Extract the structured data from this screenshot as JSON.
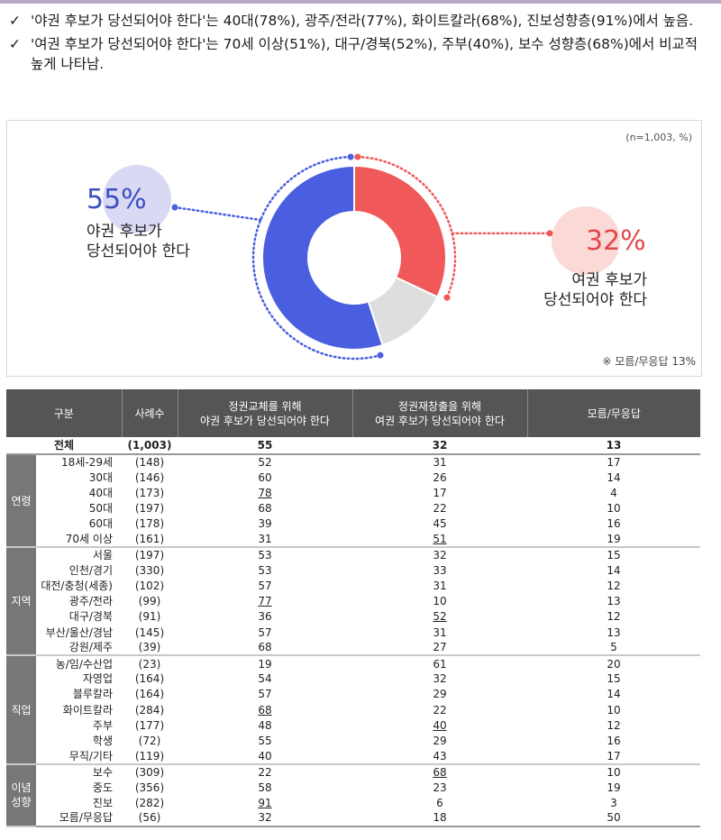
{
  "bullets": [
    {
      "check": "✓",
      "text": "'야권 후보가 당선되어야 한다'는 40대(78%), 광주/전라(77%), 화이트칼라(68%), 진보성향층(91%)에서 높음."
    },
    {
      "check": "✓",
      "text": "'여권 후보가 당선되어야 한다'는 70세 이상(51%), 대구/경북(52%), 주부(40%), 보수 성향층(68%)에서 비교적 높게 나타남."
    }
  ],
  "chart_data": {
    "type": "pie",
    "note": "(n=1,003, %)",
    "footnote": "※ 모름/무응답 13%",
    "slices": [
      {
        "name_lines": [
          "야권 후보가",
          "당선되어야 한다"
        ],
        "value": 55,
        "value_label": "55%",
        "color": "#4a5ee0",
        "bubble": "#d9d9f4"
      },
      {
        "name_lines": [
          "여권 후보가",
          "당선되어야 한다"
        ],
        "value": 32,
        "value_label": "32%",
        "color": "#f0585a",
        "bubble": "#fbd9d7"
      },
      {
        "name_lines": [],
        "value": 13,
        "value_label": "",
        "color": "#dcdfdd",
        "bubble": ""
      }
    ]
  },
  "table": {
    "headers": [
      {
        "lines": [
          "구분"
        ]
      },
      {
        "lines": [
          "사례수"
        ]
      },
      {
        "lines": [
          "정권교체를 위해",
          "야권 후보가 당선되어야 한다"
        ]
      },
      {
        "lines": [
          "정권재창출을 위해",
          "여권 후보가 당선되어야 한다"
        ]
      },
      {
        "lines": [
          "모름/무응답"
        ]
      }
    ],
    "total": {
      "label": "전체",
      "n": "(1,003)",
      "v": [
        "55",
        "32",
        "13"
      ]
    },
    "groups": [
      {
        "name": "연령",
        "rows": [
          {
            "label": "18세-29세",
            "n": "(148)",
            "v": [
              "52",
              "31",
              "17"
            ],
            "u": []
          },
          {
            "label": "30대",
            "n": "(146)",
            "v": [
              "60",
              "26",
              "14"
            ],
            "u": []
          },
          {
            "label": "40대",
            "n": "(173)",
            "v": [
              "78",
              "17",
              "4"
            ],
            "u": [
              0
            ]
          },
          {
            "label": "50대",
            "n": "(197)",
            "v": [
              "68",
              "22",
              "10"
            ],
            "u": []
          },
          {
            "label": "60대",
            "n": "(178)",
            "v": [
              "39",
              "45",
              "16"
            ],
            "u": []
          },
          {
            "label": "70세 이상",
            "n": "(161)",
            "v": [
              "31",
              "51",
              "19"
            ],
            "u": [
              1
            ]
          }
        ]
      },
      {
        "name": "지역",
        "rows": [
          {
            "label": "서울",
            "n": "(197)",
            "v": [
              "53",
              "32",
              "15"
            ],
            "u": []
          },
          {
            "label": "인천/경기",
            "n": "(330)",
            "v": [
              "53",
              "33",
              "14"
            ],
            "u": []
          },
          {
            "label": "대전/충청(세종)",
            "n": "(102)",
            "v": [
              "57",
              "31",
              "12"
            ],
            "u": []
          },
          {
            "label": "광주/전라",
            "n": "(99)",
            "v": [
              "77",
              "10",
              "13"
            ],
            "u": [
              0
            ]
          },
          {
            "label": "대구/경북",
            "n": "(91)",
            "v": [
              "36",
              "52",
              "12"
            ],
            "u": [
              1
            ]
          },
          {
            "label": "부산/울산/경남",
            "n": "(145)",
            "v": [
              "57",
              "31",
              "13"
            ],
            "u": []
          },
          {
            "label": "강원/제주",
            "n": "(39)",
            "v": [
              "68",
              "27",
              "5"
            ],
            "u": []
          }
        ]
      },
      {
        "name": "직업",
        "rows": [
          {
            "label": "농/임/수산업",
            "n": "(23)",
            "v": [
              "19",
              "61",
              "20"
            ],
            "u": []
          },
          {
            "label": "자영업",
            "n": "(164)",
            "v": [
              "54",
              "32",
              "15"
            ],
            "u": []
          },
          {
            "label": "블루칼라",
            "n": "(164)",
            "v": [
              "57",
              "29",
              "14"
            ],
            "u": []
          },
          {
            "label": "화이트칼라",
            "n": "(284)",
            "v": [
              "68",
              "22",
              "10"
            ],
            "u": [
              0
            ]
          },
          {
            "label": "주부",
            "n": "(177)",
            "v": [
              "48",
              "40",
              "12"
            ],
            "u": [
              1
            ]
          },
          {
            "label": "학생",
            "n": "(72)",
            "v": [
              "55",
              "29",
              "16"
            ],
            "u": []
          },
          {
            "label": "무직/기타",
            "n": "(119)",
            "v": [
              "40",
              "43",
              "17"
            ],
            "u": []
          }
        ]
      },
      {
        "name": "이념\n성향",
        "rows": [
          {
            "label": "보수",
            "n": "(309)",
            "v": [
              "22",
              "68",
              "10"
            ],
            "u": [
              1
            ]
          },
          {
            "label": "중도",
            "n": "(356)",
            "v": [
              "58",
              "23",
              "19"
            ],
            "u": []
          },
          {
            "label": "진보",
            "n": "(282)",
            "v": [
              "91",
              "6",
              "3"
            ],
            "u": [
              0
            ]
          },
          {
            "label": "모름/무응답",
            "n": "(56)",
            "v": [
              "32",
              "18",
              "50"
            ],
            "u": []
          }
        ]
      }
    ]
  }
}
